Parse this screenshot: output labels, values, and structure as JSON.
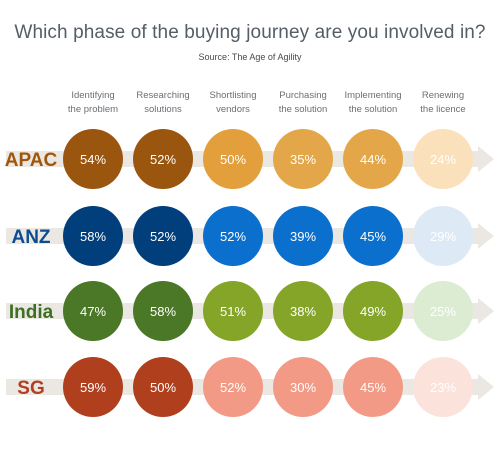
{
  "title": "Which phase of the buying journey are you involved in?",
  "source": "Source: The Age of Agility",
  "chart_data": {
    "type": "table",
    "phases": [
      [
        "Identifying",
        "the problem"
      ],
      [
        "Researching",
        "solutions"
      ],
      [
        "Shortlisting",
        "vendors"
      ],
      [
        "Purchasing",
        "the solution"
      ],
      [
        "Implementing",
        "the solution"
      ],
      [
        "Renewing",
        "the licence"
      ]
    ],
    "unit": "%",
    "regions": [
      {
        "name": "APAC",
        "label_color": "#a0560c",
        "values": [
          54,
          52,
          50,
          35,
          44,
          24
        ],
        "colors": [
          "#9a560f",
          "#9a560f",
          "#e39f3b",
          "#e3a74a",
          "#e3a74a",
          "#fbe1bb"
        ],
        "text_colors": [
          "#ffffff",
          "#ffffff",
          "#ffffff",
          "#ffffff",
          "#ffffff",
          "#8a5a1a"
        ]
      },
      {
        "name": "ANZ",
        "label_color": "#0d4d8f",
        "values": [
          58,
          52,
          52,
          39,
          45,
          29
        ],
        "colors": [
          "#003f7c",
          "#003f7c",
          "#0b6fce",
          "#0b6fce",
          "#0b6fce",
          "#dde9f4"
        ],
        "text_colors": [
          "#ffffff",
          "#ffffff",
          "#ffffff",
          "#ffffff",
          "#ffffff",
          "#0d4d8f"
        ]
      },
      {
        "name": "India",
        "label_color": "#3f6f22",
        "values": [
          47,
          58,
          51,
          38,
          49,
          25
        ],
        "colors": [
          "#4a7826",
          "#4a7826",
          "#84a528",
          "#84a528",
          "#84a528",
          "#dcecd3"
        ],
        "text_colors": [
          "#ffffff",
          "#ffffff",
          "#ffffff",
          "#ffffff",
          "#ffffff",
          "#3f6f22"
        ]
      },
      {
        "name": "SG",
        "label_color": "#b1401f",
        "values": [
          59,
          50,
          52,
          30,
          45,
          23
        ],
        "colors": [
          "#b03f1e",
          "#b03f1e",
          "#f29a85",
          "#f29a85",
          "#f29a85",
          "#fbe2db"
        ],
        "text_colors": [
          "#ffffff",
          "#ffffff",
          "#ffffff",
          "#ffffff",
          "#ffffff",
          "#b1401f"
        ]
      }
    ],
    "arrow_color": "#ebe8e4"
  }
}
